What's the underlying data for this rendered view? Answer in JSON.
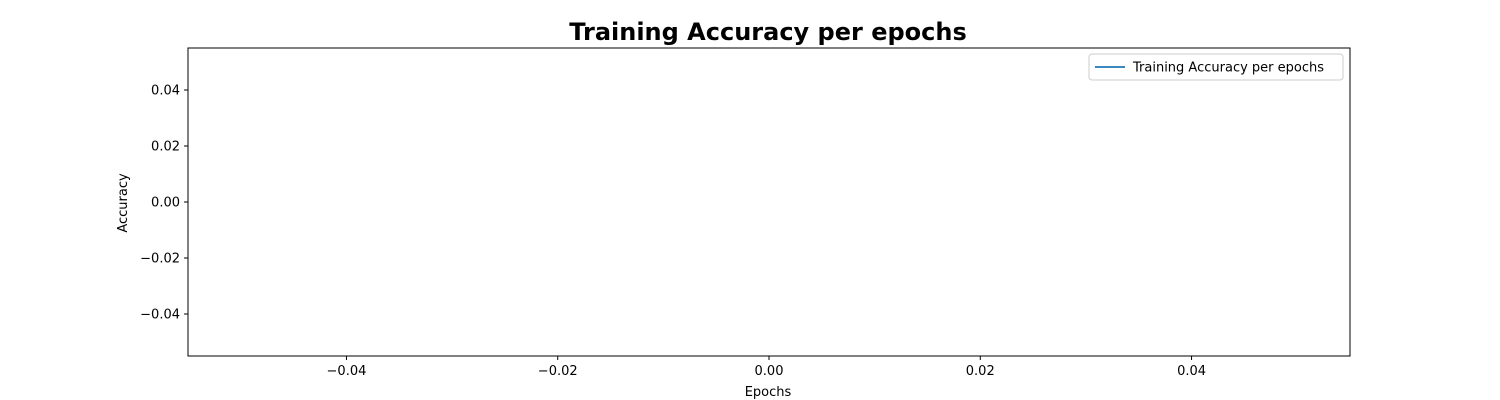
{
  "chart_data": {
    "type": "line",
    "title": "Training Accuracy per epochs",
    "xlabel": "Epochs",
    "ylabel": "Accuracy",
    "xlim": [
      -0.055,
      0.055
    ],
    "ylim": [
      -0.055,
      0.055
    ],
    "xticks": [
      -0.04,
      -0.02,
      0.0,
      0.02,
      0.04
    ],
    "xtick_labels": [
      "−0.04",
      "−0.02",
      "0.00",
      "0.02",
      "0.04"
    ],
    "yticks": [
      0.04,
      0.02,
      0.0,
      -0.02,
      -0.04
    ],
    "ytick_labels": [
      "0.04",
      "0.02",
      "0.00",
      "−0.02",
      "−0.04"
    ],
    "grid": false,
    "legend_position": "top-right",
    "series": [
      {
        "name": "Training Accuracy per epochs",
        "color": "#1f77b4",
        "x": [],
        "y": []
      }
    ]
  }
}
